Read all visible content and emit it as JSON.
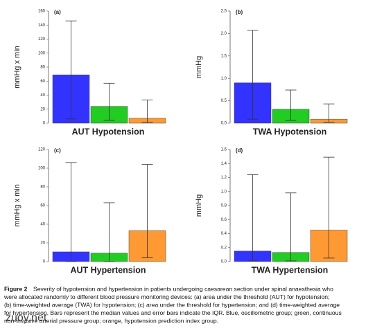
{
  "chart_data": [
    {
      "type": "bar",
      "panel": "(a)",
      "ylabel": "mmHg x min",
      "xlabel": "AUT Hypotension",
      "values": [
        69,
        24,
        7
      ],
      "error_low": [
        6,
        4,
        1
      ],
      "error_high": [
        146,
        57,
        33
      ],
      "colors": [
        "#3333ff",
        "#22cc22",
        "#ff9933"
      ],
      "ylim": [
        0,
        160
      ],
      "yticks": [
        0,
        20,
        40,
        60,
        80,
        100,
        120,
        140,
        160
      ]
    },
    {
      "type": "bar",
      "panel": "(b)",
      "ylabel": "mmHg",
      "xlabel": "TWA Hypotension",
      "values": [
        0.9,
        0.31,
        0.09
      ],
      "error_low": [
        0.09,
        0.06,
        0.02
      ],
      "error_high": [
        2.07,
        0.74,
        0.43
      ],
      "colors": [
        "#3333ff",
        "#22cc22",
        "#ff9933"
      ],
      "ylim": [
        0,
        2.5
      ],
      "yticks": [
        {
          "value": 0,
          "label": "0.0"
        },
        0.5,
        {
          "value": 1,
          "label": "1.0"
        },
        1.5,
        {
          "value": 2,
          "label": "2.0"
        },
        2.5
      ]
    },
    {
      "type": "bar",
      "panel": "(c)",
      "ylabel": "mmHg x min",
      "xlabel": "AUT Hypertension",
      "values": [
        10.4,
        9,
        33
      ],
      "error_low": [
        0,
        0,
        4
      ],
      "error_high": [
        106,
        63,
        104
      ],
      "colors": [
        "#3333ff",
        "#22cc22",
        "#ff9933"
      ],
      "ylim": [
        0,
        120
      ],
      "yticks": [
        0,
        20,
        40,
        60,
        80,
        100,
        120
      ]
    },
    {
      "type": "bar",
      "panel": "(d)",
      "ylabel": "mmHg",
      "xlabel": "TWA Hypertension",
      "values": [
        0.15,
        0.13,
        0.45
      ],
      "error_low": [
        0.01,
        0.01,
        0.05
      ],
      "error_high": [
        1.24,
        0.98,
        1.49
      ],
      "colors": [
        "#3333ff",
        "#22cc22",
        "#ff9933"
      ],
      "ylim": [
        0,
        1.6
      ],
      "yticks": [
        {
          "value": 0,
          "label": "0.0"
        },
        0.2,
        0.4,
        0.6,
        0.8,
        {
          "value": 1,
          "label": "1.0"
        },
        1.2,
        1.4,
        1.6
      ]
    }
  ],
  "caption": {
    "label": "Figure 2",
    "lines": [
      "Severity of hypotension and hypertension in patients undergoing caesarean section under spinal anaesthesia who",
      "were allocated randomly to different blood pressure monitoring devices: (a) area under the threshold (AUT) for hypotension;",
      "(b) time-weighted average (TWA) for hypotension; (c) area under the threshold for hypertension; and (d) time-weighted average",
      "for hypertension. Bars represent the median values and error bars indicate the IQR. Blue, oscillometric group; green, continuous",
      "non-invasive arterial pressure group; orange, hypotension prediction index group."
    ]
  },
  "watermark": "zuoy.net"
}
